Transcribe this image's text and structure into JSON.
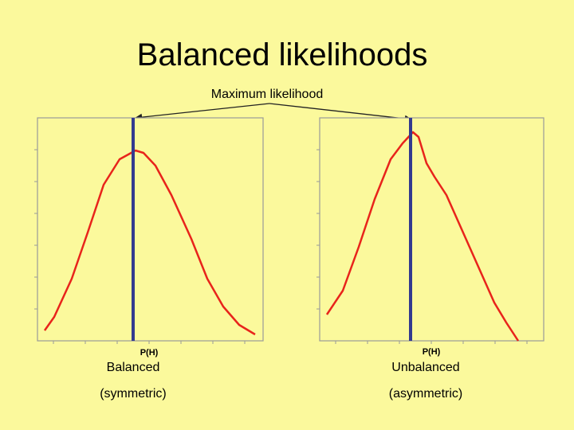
{
  "title": "Balanced likelihoods",
  "annotation": "Maximum likelihood",
  "panels": [
    {
      "axis_label": "P(H)",
      "caption": "Balanced",
      "subcaption": "(symmetric)"
    },
    {
      "axis_label": "P(H)",
      "caption": "Unbalanced",
      "subcaption": "(asymmetric)"
    }
  ]
}
